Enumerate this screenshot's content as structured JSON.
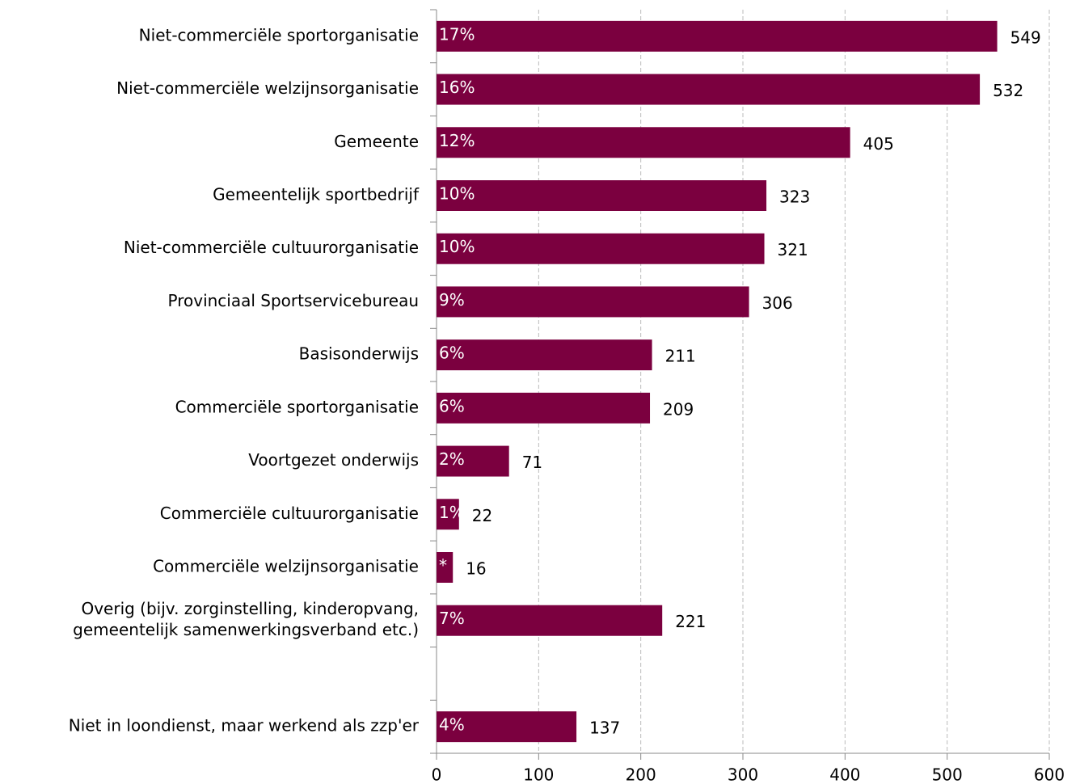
{
  "chart_data": {
    "type": "barh",
    "categories": [
      "Niet-commerciële sportorganisatie",
      "Niet-commerciële welzijnsorganisatie",
      "Gemeente",
      "Gemeentelijk sportbedrijf",
      "Niet-commerciële cultuurorganisatie",
      "Provinciaal Sportservicebureau",
      "Basisonderwijs",
      "Commerciële sportorganisatie",
      "Voortgezet onderwijs",
      "Commerciële cultuurorganisatie",
      "Commerciële welzijnsorganisatie",
      [
        "Overig (bijv. zorginstelling, kinderopvang,",
        "gemeentelijk samenwerkingsverband etc.)"
      ],
      null,
      "Niet in loondienst, maar werkend als zzp'er"
    ],
    "values": [
      549,
      532,
      405,
      323,
      321,
      306,
      211,
      209,
      71,
      22,
      16,
      221,
      null,
      137
    ],
    "share_labels": [
      "17%",
      "16%",
      "12%",
      "10%",
      "10%",
      "9%",
      "6%",
      "6%",
      "2%",
      "1%",
      "*",
      "7%",
      null,
      "4%"
    ],
    "color": "#7b003f",
    "xlim": [
      0,
      600
    ],
    "xticks": [
      0,
      100,
      200,
      300,
      400,
      500,
      600
    ],
    "grid": true
  }
}
